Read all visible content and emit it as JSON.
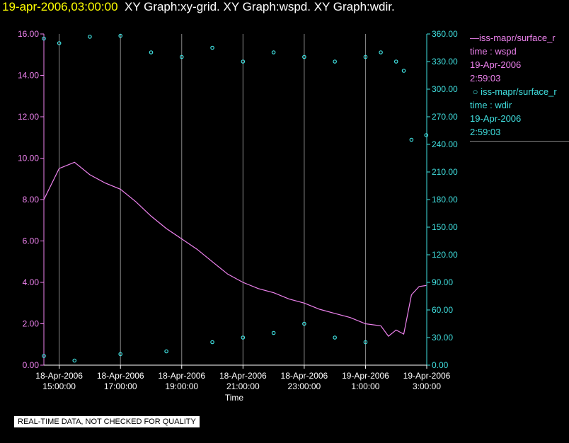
{
  "header": {
    "timestamp": "19-apr-2006,03:00:00",
    "graphs": "XY Graph:xy-grid.  XY Graph:wspd.  XY Graph:wdir."
  },
  "legend": {
    "wspd": {
      "name": "iss-mapr/surface_r",
      "var": "time : wspd",
      "date": "19-Apr-2006",
      "time": "2:59:03"
    },
    "wdir": {
      "name": "iss-mapr/surface_r",
      "var": "time : wdir",
      "date": "19-Apr-2006",
      "time": "2:59:03"
    }
  },
  "footer": {
    "quality_note": "REAL-TIME DATA, NOT CHECKED FOR QUALITY"
  },
  "colors": {
    "wspd": "#ee82ee",
    "wdir": "#40e0e0",
    "grid": "#888888",
    "header_time": "#ffff00"
  },
  "chart_data": {
    "type": "line",
    "xlabel": "Time",
    "xlim": [
      "2006-04-18 14:30",
      "2006-04-19 03:00"
    ],
    "x_ticks": [
      {
        "t": "2006-04-18 15:00",
        "date": "18-Apr-2006",
        "time": "15:00:00"
      },
      {
        "t": "2006-04-18 17:00",
        "date": "18-Apr-2006",
        "time": "17:00:00"
      },
      {
        "t": "2006-04-18 19:00",
        "date": "18-Apr-2006",
        "time": "19:00:00"
      },
      {
        "t": "2006-04-18 21:00",
        "date": "18-Apr-2006",
        "time": "21:00:00"
      },
      {
        "t": "2006-04-18 23:00",
        "date": "18-Apr-2006",
        "time": "23:00:00"
      },
      {
        "t": "2006-04-19 01:00",
        "date": "19-Apr-2006",
        "time": "1:00:00"
      },
      {
        "t": "2006-04-19 03:00",
        "date": "19-Apr-2006",
        "time": "3:00:00"
      }
    ],
    "y_left": {
      "lim": [
        0,
        16
      ],
      "ticks": [
        "0.00",
        "2.00",
        "4.00",
        "6.00",
        "8.00",
        "10.00",
        "12.00",
        "14.00",
        "16.00"
      ]
    },
    "y_right": {
      "lim": [
        0,
        360
      ],
      "ticks": [
        "0.00",
        "30.00",
        "60.00",
        "90.00",
        "120.00",
        "150.00",
        "180.00",
        "210.00",
        "240.00",
        "270.00",
        "300.00",
        "330.00",
        "360.00"
      ]
    },
    "series": [
      {
        "id": "wspd",
        "axis": "left",
        "style": "line",
        "x": [
          "2006-04-18 14:30",
          "2006-04-18 15:00",
          "2006-04-18 15:30",
          "2006-04-18 16:00",
          "2006-04-18 16:30",
          "2006-04-18 17:00",
          "2006-04-18 17:30",
          "2006-04-18 18:00",
          "2006-04-18 18:30",
          "2006-04-18 19:00",
          "2006-04-18 19:30",
          "2006-04-18 20:00",
          "2006-04-18 20:30",
          "2006-04-18 21:00",
          "2006-04-18 21:30",
          "2006-04-18 22:00",
          "2006-04-18 22:30",
          "2006-04-18 23:00",
          "2006-04-18 23:30",
          "2006-04-19 00:00",
          "2006-04-19 00:30",
          "2006-04-19 01:00",
          "2006-04-19 01:30",
          "2006-04-19 01:45",
          "2006-04-19 02:00",
          "2006-04-19 02:15",
          "2006-04-19 02:30",
          "2006-04-19 02:45",
          "2006-04-19 02:59"
        ],
        "y": [
          8.0,
          9.5,
          9.8,
          9.2,
          8.8,
          8.5,
          7.9,
          7.2,
          6.6,
          6.1,
          5.6,
          5.0,
          4.4,
          4.0,
          3.7,
          3.5,
          3.2,
          3.0,
          2.7,
          2.5,
          2.3,
          2.0,
          1.9,
          1.4,
          1.7,
          1.5,
          3.4,
          3.8,
          3.85
        ]
      },
      {
        "id": "wdir",
        "axis": "right",
        "style": "scatter",
        "x": [
          "2006-04-18 14:30",
          "2006-04-18 15:00",
          "2006-04-18 16:00",
          "2006-04-18 17:00",
          "2006-04-18 18:00",
          "2006-04-18 19:00",
          "2006-04-18 20:00",
          "2006-04-18 21:00",
          "2006-04-18 22:00",
          "2006-04-18 23:00",
          "2006-04-19 00:00",
          "2006-04-19 01:00",
          "2006-04-19 01:30",
          "2006-04-19 02:00",
          "2006-04-19 02:15",
          "2006-04-19 02:30",
          "2006-04-19 02:59"
        ],
        "y": [
          355,
          350,
          357,
          358,
          340,
          335,
          345,
          330,
          340,
          335,
          330,
          335,
          340,
          330,
          320,
          245,
          250
        ]
      },
      {
        "id": "wdir_low",
        "axis": "right",
        "style": "scatter",
        "x": [
          "2006-04-18 14:30",
          "2006-04-18 15:30",
          "2006-04-18 17:00",
          "2006-04-18 18:30",
          "2006-04-18 20:00",
          "2006-04-18 21:00",
          "2006-04-18 22:00",
          "2006-04-18 23:00",
          "2006-04-19 00:00",
          "2006-04-19 01:00"
        ],
        "y": [
          10,
          5,
          12,
          15,
          25,
          30,
          35,
          45,
          30,
          25
        ]
      }
    ]
  }
}
